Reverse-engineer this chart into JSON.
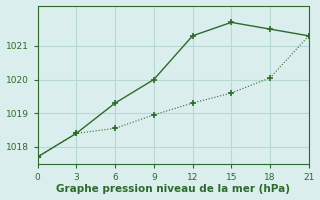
{
  "line1_x": [
    0,
    3,
    6,
    9,
    12,
    15,
    18,
    21
  ],
  "line1_y": [
    1017.7,
    1018.4,
    1019.3,
    1020.0,
    1021.3,
    1021.7,
    1021.5,
    1021.3
  ],
  "line2_x": [
    0,
    3,
    6,
    9,
    12,
    15,
    18,
    21
  ],
  "line2_y": [
    1017.7,
    1018.4,
    1018.55,
    1018.95,
    1019.3,
    1019.6,
    1020.05,
    1021.3
  ],
  "line_color": "#2d6a2d",
  "marker": "+",
  "xlim": [
    0,
    21
  ],
  "ylim": [
    1017.5,
    1022.2
  ],
  "xticks": [
    0,
    3,
    6,
    9,
    12,
    15,
    18,
    21
  ],
  "yticks": [
    1018,
    1019,
    1020,
    1021
  ],
  "xlabel": "Graphe pression niveau de la mer (hPa)",
  "background_color": "#daeeed",
  "grid_color": "#b8d8d4",
  "tick_color": "#2d6a2d",
  "label_color": "#2d6a2d",
  "xlabel_fontsize": 7.5,
  "tick_fontsize": 6.5
}
